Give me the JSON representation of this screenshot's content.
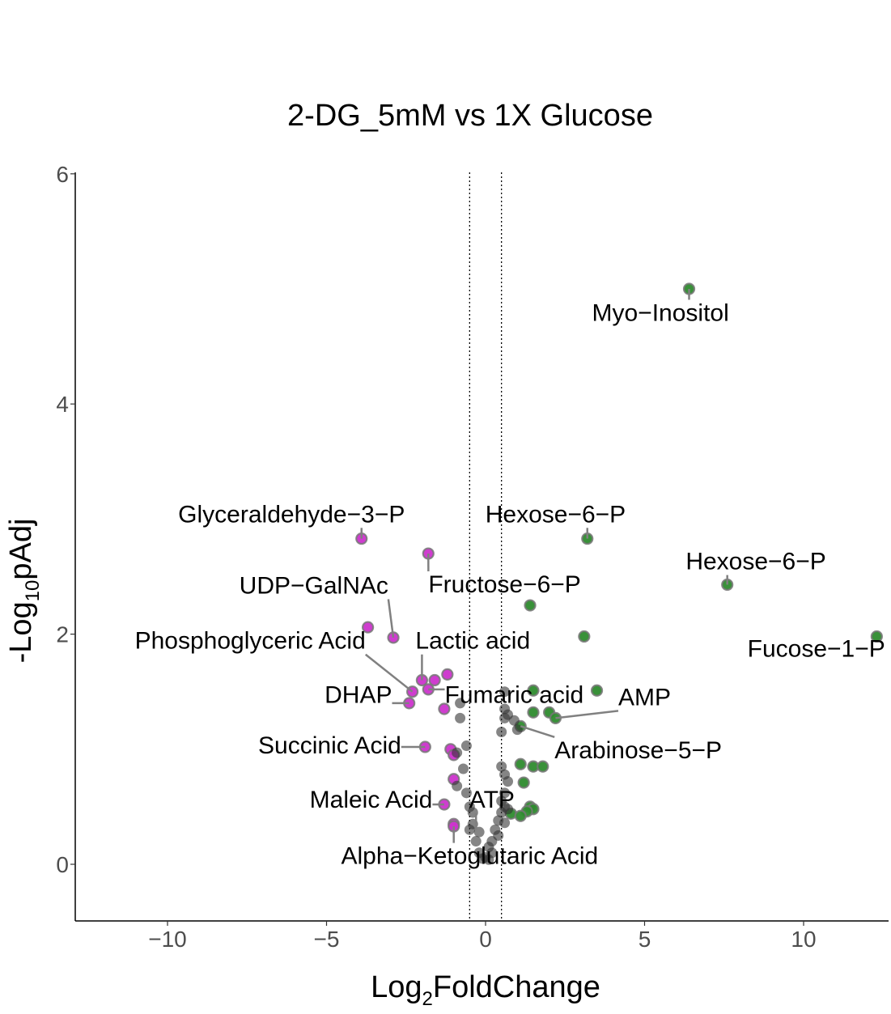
{
  "chart_data": {
    "type": "scatter",
    "title": "2-DG_5mM vs 1X Glucose",
    "xlabel": {
      "main": "Log",
      "sub": "2",
      "rest": "FoldChange"
    },
    "ylabel": {
      "main": "-Log",
      "sub": "10",
      "rest": "pAdj"
    },
    "xlim": [
      -13,
      12.7
    ],
    "ylim": [
      -0.5,
      6.05
    ],
    "x_ticks": [
      -10,
      -5,
      0,
      5,
      10
    ],
    "x_tick_labels": [
      "−10",
      "−5",
      "0",
      "5",
      "10"
    ],
    "y_ticks": [
      0,
      2,
      4,
      6
    ],
    "y_tick_labels": [
      "0",
      "2",
      "4",
      "6"
    ],
    "fc_thresholds": [
      -0.5,
      0.5
    ],
    "colors": {
      "down": "#cc33cc",
      "up": "#2e8b2e",
      "ns": "#333333",
      "leader": "#808080"
    },
    "points": [
      {
        "x": 6.4,
        "y": 5.0,
        "g": "up"
      },
      {
        "x": 7.6,
        "y": 2.43,
        "g": "up"
      },
      {
        "x": 12.3,
        "y": 1.98,
        "g": "up"
      },
      {
        "x": 3.2,
        "y": 2.83,
        "g": "up"
      },
      {
        "x": 1.4,
        "y": 2.25,
        "g": "up"
      },
      {
        "x": 3.1,
        "y": 1.98,
        "g": "up"
      },
      {
        "x": 3.5,
        "y": 1.51,
        "g": "up"
      },
      {
        "x": 1.5,
        "y": 1.51,
        "g": "up"
      },
      {
        "x": 1.5,
        "y": 1.32,
        "g": "up"
      },
      {
        "x": 2.0,
        "y": 1.32,
        "g": "up"
      },
      {
        "x": 2.2,
        "y": 1.27,
        "g": "up"
      },
      {
        "x": 1.1,
        "y": 1.2,
        "g": "up"
      },
      {
        "x": 1.1,
        "y": 0.87,
        "g": "up"
      },
      {
        "x": 1.5,
        "y": 0.85,
        "g": "up"
      },
      {
        "x": 1.8,
        "y": 0.85,
        "g": "up"
      },
      {
        "x": 1.2,
        "y": 0.71,
        "g": "up"
      },
      {
        "x": 1.4,
        "y": 0.5,
        "g": "up"
      },
      {
        "x": 1.5,
        "y": 0.48,
        "g": "up"
      },
      {
        "x": 1.3,
        "y": 0.46,
        "g": "up"
      },
      {
        "x": 0.8,
        "y": 0.44,
        "g": "up"
      },
      {
        "x": 1.1,
        "y": 0.42,
        "g": "up"
      },
      {
        "x": -3.9,
        "y": 2.83,
        "g": "down"
      },
      {
        "x": -1.8,
        "y": 2.7,
        "g": "down"
      },
      {
        "x": -3.7,
        "y": 2.06,
        "g": "down"
      },
      {
        "x": -2.9,
        "y": 1.97,
        "g": "down"
      },
      {
        "x": -2.0,
        "y": 1.6,
        "g": "down"
      },
      {
        "x": -1.6,
        "y": 1.6,
        "g": "down"
      },
      {
        "x": -1.2,
        "y": 1.65,
        "g": "down"
      },
      {
        "x": -2.3,
        "y": 1.5,
        "g": "down"
      },
      {
        "x": -1.8,
        "y": 1.52,
        "g": "down"
      },
      {
        "x": -2.4,
        "y": 1.4,
        "g": "down"
      },
      {
        "x": -1.3,
        "y": 1.35,
        "g": "down"
      },
      {
        "x": -1.9,
        "y": 1.02,
        "g": "down"
      },
      {
        "x": -1.1,
        "y": 1.0,
        "g": "down"
      },
      {
        "x": -1.0,
        "y": 0.95,
        "g": "down"
      },
      {
        "x": -1.0,
        "y": 0.74,
        "g": "down"
      },
      {
        "x": -1.3,
        "y": 0.52,
        "g": "down"
      },
      {
        "x": -1.0,
        "y": 0.35,
        "g": "down"
      },
      {
        "x": -1.0,
        "y": 0.33,
        "g": "down"
      },
      {
        "x": 0.6,
        "y": 1.5,
        "g": "ns"
      },
      {
        "x": 0.6,
        "y": 1.35,
        "g": "ns"
      },
      {
        "x": 0.7,
        "y": 1.3,
        "g": "ns"
      },
      {
        "x": 0.6,
        "y": 1.27,
        "g": "ns"
      },
      {
        "x": 0.9,
        "y": 1.25,
        "g": "ns"
      },
      {
        "x": 1.0,
        "y": 1.17,
        "g": "ns"
      },
      {
        "x": 0.5,
        "y": 1.15,
        "g": "ns"
      },
      {
        "x": 0.5,
        "y": 0.85,
        "g": "ns"
      },
      {
        "x": 0.6,
        "y": 0.78,
        "g": "ns"
      },
      {
        "x": 0.7,
        "y": 0.72,
        "g": "ns"
      },
      {
        "x": 0.6,
        "y": 0.62,
        "g": "ns"
      },
      {
        "x": 0.5,
        "y": 0.55,
        "g": "ns"
      },
      {
        "x": 0.6,
        "y": 0.5,
        "g": "ns"
      },
      {
        "x": 0.7,
        "y": 0.48,
        "g": "ns"
      },
      {
        "x": 0.5,
        "y": 0.45,
        "g": "ns"
      },
      {
        "x": 0.4,
        "y": 0.38,
        "g": "ns"
      },
      {
        "x": 0.6,
        "y": 0.36,
        "g": "ns"
      },
      {
        "x": 0.3,
        "y": 0.3,
        "g": "ns"
      },
      {
        "x": 0.4,
        "y": 0.25,
        "g": "ns"
      },
      {
        "x": 0.2,
        "y": 0.2,
        "g": "ns"
      },
      {
        "x": 0.1,
        "y": 0.15,
        "g": "ns"
      },
      {
        "x": 0.2,
        "y": 0.1,
        "g": "ns"
      },
      {
        "x": 0.0,
        "y": 0.06,
        "g": "ns"
      },
      {
        "x": -0.1,
        "y": 0.05,
        "g": "ns"
      },
      {
        "x": 0.1,
        "y": 0.04,
        "g": "ns"
      },
      {
        "x": -0.8,
        "y": 1.4,
        "g": "ns"
      },
      {
        "x": -0.8,
        "y": 1.27,
        "g": "ns"
      },
      {
        "x": -0.6,
        "y": 1.03,
        "g": "ns"
      },
      {
        "x": -0.9,
        "y": 0.97,
        "g": "ns"
      },
      {
        "x": -0.7,
        "y": 0.83,
        "g": "ns"
      },
      {
        "x": -0.9,
        "y": 0.68,
        "g": "ns"
      },
      {
        "x": -0.6,
        "y": 0.62,
        "g": "ns"
      },
      {
        "x": -0.5,
        "y": 0.5,
        "g": "ns"
      },
      {
        "x": -0.4,
        "y": 0.45,
        "g": "ns"
      },
      {
        "x": -0.4,
        "y": 0.35,
        "g": "ns"
      },
      {
        "x": -0.5,
        "y": 0.3,
        "g": "ns"
      },
      {
        "x": -0.2,
        "y": 0.28,
        "g": "ns"
      },
      {
        "x": -0.3,
        "y": 0.2,
        "g": "ns"
      },
      {
        "x": -0.2,
        "y": 0.1,
        "g": "ns"
      }
    ],
    "labels": [
      {
        "text": "Myo−Inositol",
        "x": 5.5,
        "y": 4.8,
        "px": 6.4,
        "py": 5.0
      },
      {
        "text": "Hexose−6−P",
        "x": 2.2,
        "y": 3.05,
        "px": 3.2,
        "py": 2.83
      },
      {
        "text": "Hexose−6−P",
        "x": 8.5,
        "y": 2.64,
        "px": 7.6,
        "py": 2.43
      },
      {
        "text": "Fucose−1−P",
        "x": 10.4,
        "y": 1.88,
        "px": 12.3,
        "py": 1.98
      },
      {
        "text": "Glyceraldehyde−3−P",
        "x": -6.1,
        "y": 3.05,
        "px": -3.9,
        "py": 2.83
      },
      {
        "text": "Fructose−6−P",
        "x": 0.6,
        "y": 2.44,
        "px": -1.8,
        "py": 2.7
      },
      {
        "text": "UDP−GalNAc",
        "x": -5.4,
        "y": 2.43,
        "px": -2.9,
        "py": 1.97
      },
      {
        "text": "Lactic acid",
        "x": -0.4,
        "y": 1.95,
        "px": -2.0,
        "py": 1.6
      },
      {
        "text": "Phosphoglyceric Acid",
        "x": -7.4,
        "y": 1.95,
        "px": -2.3,
        "py": 1.5
      },
      {
        "text": "DHAP",
        "x": -4.0,
        "y": 1.48,
        "px": -2.4,
        "py": 1.4
      },
      {
        "text": "Fumaric acid",
        "x": 0.9,
        "y": 1.48,
        "px": -1.8,
        "py": 1.52
      },
      {
        "text": "AMP",
        "x": 5.0,
        "y": 1.46,
        "px": 2.2,
        "py": 1.27
      },
      {
        "text": "Arabinose−5−P",
        "x": 4.8,
        "y": 1.0,
        "px": 1.1,
        "py": 1.2
      },
      {
        "text": "Succinic Acid",
        "x": -4.9,
        "y": 1.04,
        "px": -1.9,
        "py": 1.02
      },
      {
        "text": "Maleic Acid",
        "x": -3.6,
        "y": 0.57,
        "px": -1.3,
        "py": 0.52
      },
      {
        "text": "ATP",
        "x": 0.2,
        "y": 0.57,
        "px": -0.3,
        "py": 0.3
      },
      {
        "text": "Alpha−Ketoglutaric Acid",
        "x": -0.5,
        "y": 0.08,
        "px": -1.0,
        "py": 0.33
      }
    ]
  }
}
